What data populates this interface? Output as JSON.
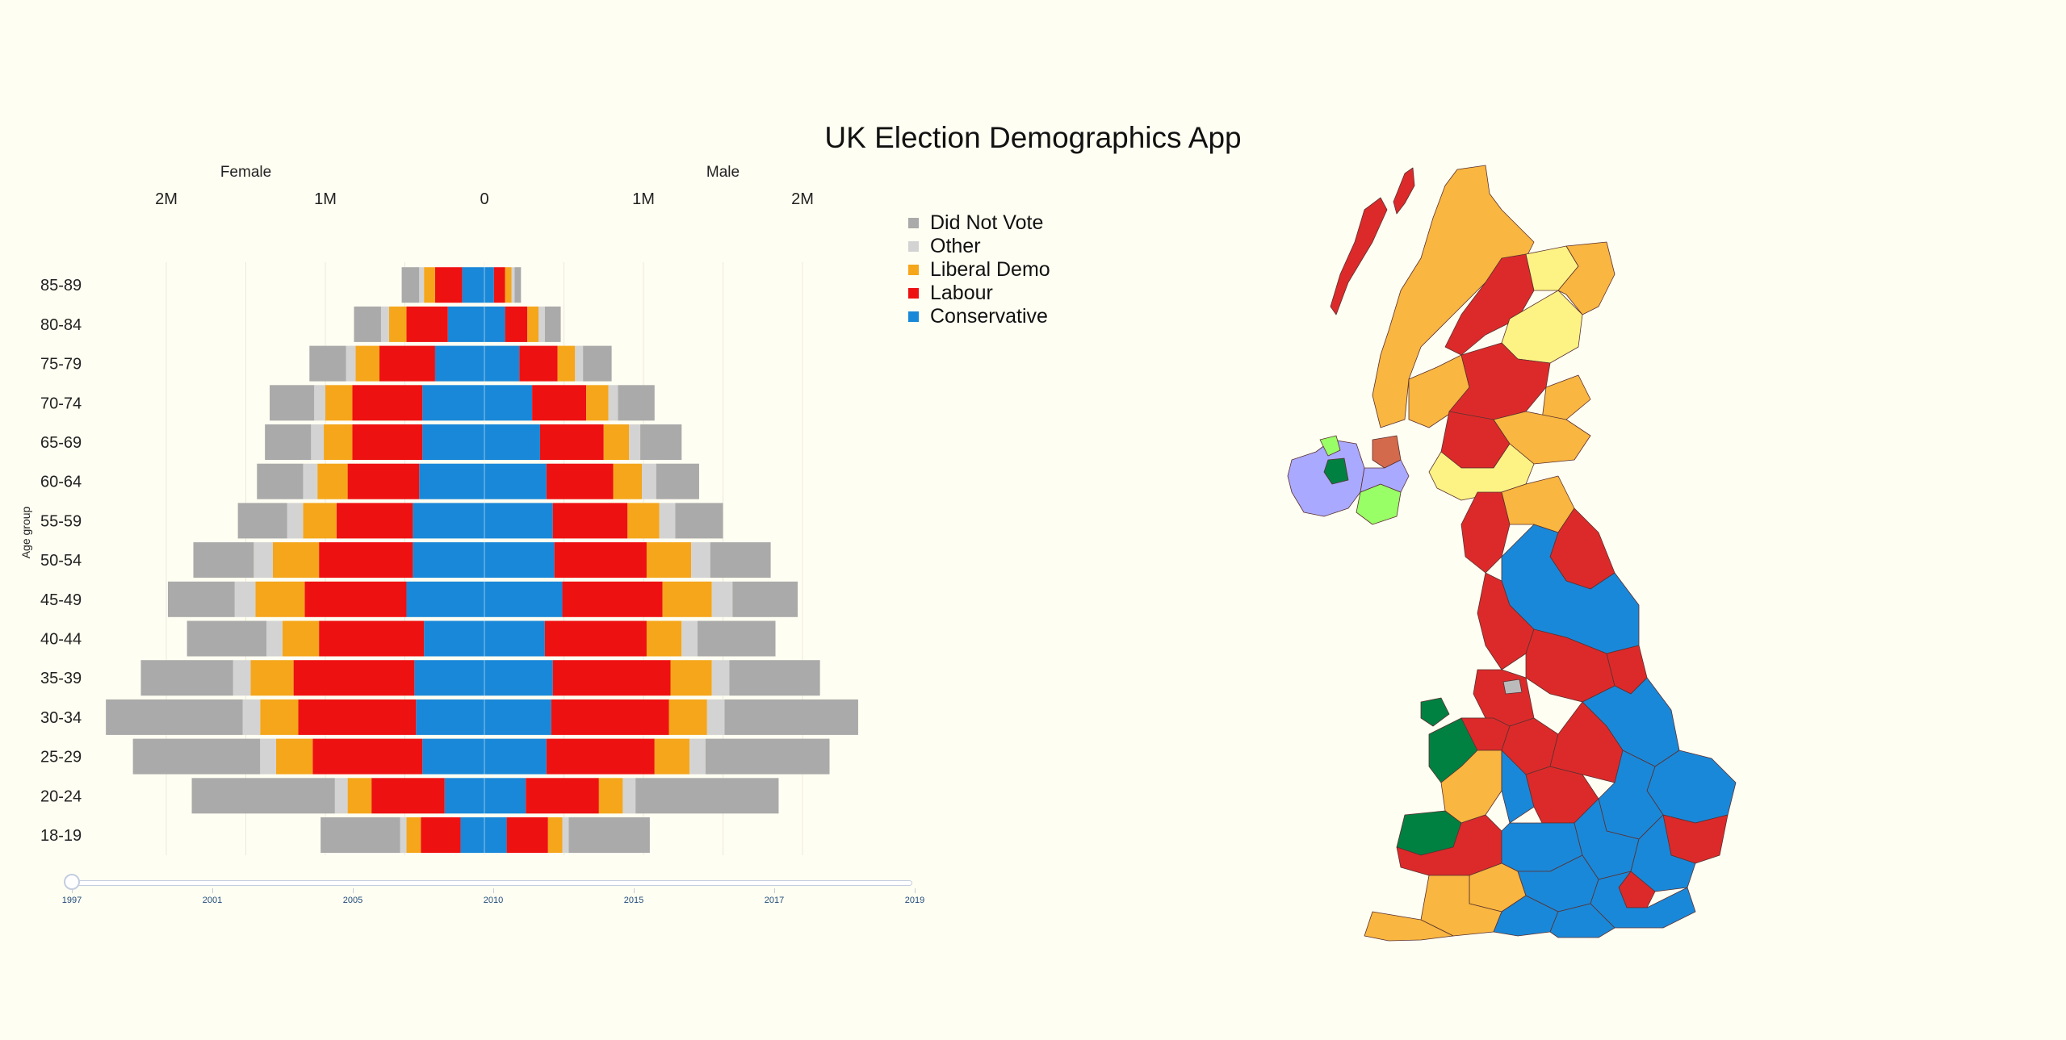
{
  "app": {
    "title": "UK Election Demographics App"
  },
  "chart_data": {
    "type": "bar",
    "orientation": "horizontal-population-pyramid",
    "xlabel_left": "Female",
    "xlabel_right": "Male",
    "ylabel": "Age group",
    "x_tick_labels": [
      "2M",
      "1M",
      "0",
      "1M",
      "2M"
    ],
    "x_ticks": [
      -2000000,
      -1000000,
      0,
      1000000,
      2000000
    ],
    "xlim": [
      -2400000,
      2400000
    ],
    "grid": true,
    "legend_position": "top-right",
    "categories": [
      "18-19",
      "20-24",
      "25-29",
      "30-34",
      "35-39",
      "40-44",
      "45-49",
      "50-54",
      "55-59",
      "60-64",
      "65-69",
      "70-74",
      "75-79",
      "80-84",
      "85-89"
    ],
    "series": [
      {
        "name": "Conservative",
        "color": "#1a88d8",
        "female": [
          150000,
          250000,
          390000,
          430000,
          440000,
          380000,
          490000,
          450000,
          450000,
          410000,
          390000,
          390000,
          310000,
          230000,
          140000
        ],
        "male": [
          140000,
          260000,
          390000,
          420000,
          430000,
          380000,
          490000,
          440000,
          430000,
          390000,
          350000,
          300000,
          220000,
          130000,
          60000
        ]
      },
      {
        "name": "Labour",
        "color": "#ee1111",
        "female": [
          250000,
          460000,
          690000,
          740000,
          760000,
          660000,
          640000,
          590000,
          480000,
          450000,
          440000,
          440000,
          350000,
          260000,
          170000
        ],
        "male": [
          260000,
          460000,
          680000,
          740000,
          740000,
          640000,
          630000,
          580000,
          470000,
          420000,
          400000,
          340000,
          240000,
          140000,
          70000
        ]
      },
      {
        "name": "Liberal Demo",
        "color": "#f5a61b",
        "female": [
          90000,
          150000,
          230000,
          240000,
          270000,
          230000,
          310000,
          290000,
          210000,
          190000,
          180000,
          170000,
          150000,
          110000,
          70000
        ],
        "male": [
          90000,
          150000,
          220000,
          240000,
          260000,
          220000,
          310000,
          280000,
          200000,
          180000,
          160000,
          140000,
          110000,
          70000,
          40000
        ]
      },
      {
        "name": "Other",
        "color": "#d3d3d3",
        "female": [
          40000,
          80000,
          100000,
          110000,
          110000,
          100000,
          130000,
          120000,
          100000,
          90000,
          80000,
          70000,
          60000,
          50000,
          30000
        ],
        "male": [
          40000,
          80000,
          100000,
          110000,
          110000,
          100000,
          130000,
          120000,
          100000,
          90000,
          70000,
          60000,
          50000,
          40000,
          20000
        ]
      },
      {
        "name": "Did Not Vote",
        "color": "#aaaaaa",
        "female": [
          500000,
          900000,
          800000,
          860000,
          580000,
          500000,
          420000,
          380000,
          310000,
          290000,
          290000,
          280000,
          230000,
          170000,
          110000
        ],
        "male": [
          510000,
          900000,
          780000,
          840000,
          570000,
          490000,
          410000,
          380000,
          300000,
          270000,
          260000,
          230000,
          180000,
          100000,
          40000
        ]
      }
    ]
  },
  "legend": [
    {
      "label": "Did Not Vote",
      "color": "#aaaaaa"
    },
    {
      "label": "Other",
      "color": "#d3d3d3"
    },
    {
      "label": "Liberal Demo",
      "color": "#f5a61b"
    },
    {
      "label": "Labour",
      "color": "#ee1111"
    },
    {
      "label": "Conservative",
      "color": "#1a88d8"
    }
  ],
  "year_slider": {
    "value": "1997",
    "marks": [
      "1997",
      "2001",
      "2005",
      "2010",
      "2015",
      "2017",
      "2019"
    ]
  },
  "map": {
    "colors": {
      "conservative": "#1a88d8",
      "labour": "#dc2a2a",
      "snp": "#fdf385",
      "libdem": "#f9b640",
      "plaid": "#008142",
      "green": "#99ff66",
      "dup": "#a9a9ff",
      "sinn_fein": "#d46a4c",
      "other": "#bbbbbb"
    }
  }
}
